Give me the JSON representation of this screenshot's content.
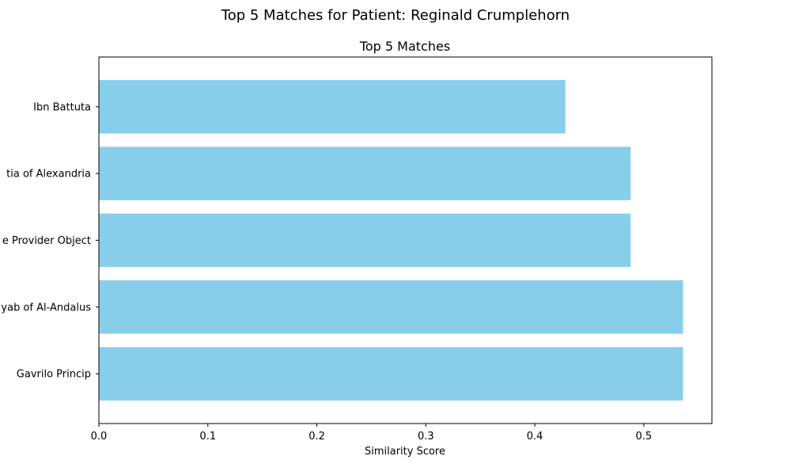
{
  "figure": {
    "suptitle": "Top 5 Matches for Patient: Reginald Crumplehorn"
  },
  "chart_data": {
    "type": "bar",
    "orientation": "horizontal",
    "title": "Top 5 Matches",
    "xlabel": "Similarity Score",
    "ylabel": "",
    "categories": [
      "Ibn Battuta",
      "Hypatia of Alexandria",
      "Service Provider Object",
      "Wallada bint al-Mustakfi / Ziryab of Al-Andalus",
      "Gavrilo Princip"
    ],
    "category_labels_visible": [
      "Ibn Battuta",
      "tia of Alexandria",
      "e Provider Object",
      "yab of Al-Andalus",
      "Gavrilo Princip"
    ],
    "values": [
      0.428,
      0.488,
      0.488,
      0.536,
      0.536
    ],
    "xlim": [
      0,
      0.5625
    ],
    "xticks": [
      0.0,
      0.1,
      0.2,
      0.3,
      0.4,
      0.5
    ],
    "xtick_labels": [
      "0.0",
      "0.1",
      "0.2",
      "0.3",
      "0.4",
      "0.5"
    ],
    "bar_color": "#87CEEB",
    "grid": false,
    "legend": "none"
  }
}
